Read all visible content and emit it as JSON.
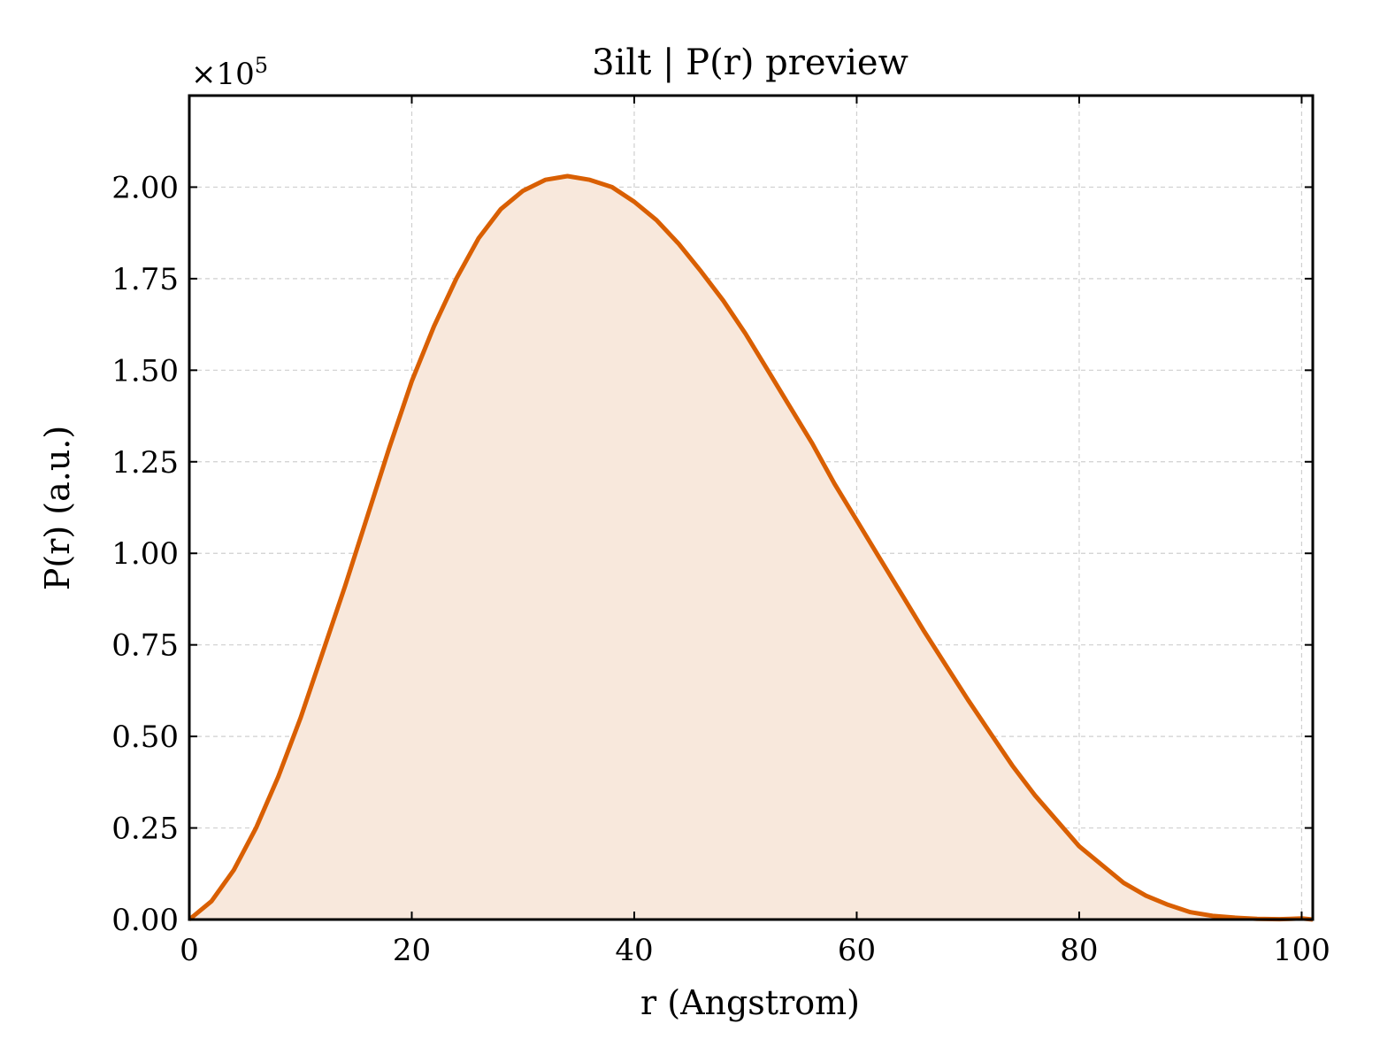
{
  "colors": {
    "line": "#d95f02",
    "fill": "#f8e8dc",
    "grid": "#cfcfcf",
    "frame": "#000000",
    "background": "#ffffff"
  },
  "chart_data": {
    "type": "area",
    "title": "3ilt | P(r) preview",
    "xlabel": "r (Angstrom)",
    "ylabel": "P(r) (a.u.)",
    "y_offset": {
      "prefix": "×10",
      "exponent": "5"
    },
    "xlim": [
      0,
      101
    ],
    "ylim": [
      0,
      2.25
    ],
    "y_scale_factor": 100000,
    "grid": true,
    "legend": "none",
    "x_ticks": [
      0,
      20,
      40,
      60,
      80,
      100
    ],
    "x_tick_labels": [
      "0",
      "20",
      "40",
      "60",
      "80",
      "100"
    ],
    "y_ticks": [
      0,
      0.25,
      0.5,
      0.75,
      1.0,
      1.25,
      1.5,
      1.75,
      2.0
    ],
    "y_tick_labels": [
      "0.00",
      "0.25",
      "0.50",
      "0.75",
      "1.00",
      "1.25",
      "1.50",
      "1.75",
      "2.00"
    ],
    "series": [
      {
        "x": [
          0,
          2,
          4,
          6,
          8,
          10,
          12,
          14,
          16,
          18,
          20,
          22,
          24,
          26,
          28,
          30,
          32,
          34,
          36,
          38,
          40,
          42,
          44,
          46,
          48,
          50,
          52,
          54,
          56,
          58,
          60,
          62,
          64,
          66,
          68,
          70,
          72,
          74,
          76,
          78,
          80,
          82,
          84,
          86,
          88,
          90,
          92,
          94,
          96,
          98,
          99,
          100,
          101
        ],
        "y": [
          0.0,
          0.05,
          0.135,
          0.25,
          0.39,
          0.55,
          0.73,
          0.91,
          1.1,
          1.29,
          1.47,
          1.62,
          1.75,
          1.86,
          1.94,
          1.99,
          2.02,
          2.03,
          2.02,
          2.0,
          1.96,
          1.91,
          1.845,
          1.77,
          1.69,
          1.6,
          1.5,
          1.4,
          1.3,
          1.19,
          1.09,
          0.99,
          0.89,
          0.79,
          0.695,
          0.6,
          0.51,
          0.42,
          0.34,
          0.27,
          0.2,
          0.15,
          0.1,
          0.065,
          0.04,
          0.02,
          0.01,
          0.005,
          0.002,
          0.001,
          0.002,
          0.003,
          0.0
        ]
      }
    ]
  }
}
